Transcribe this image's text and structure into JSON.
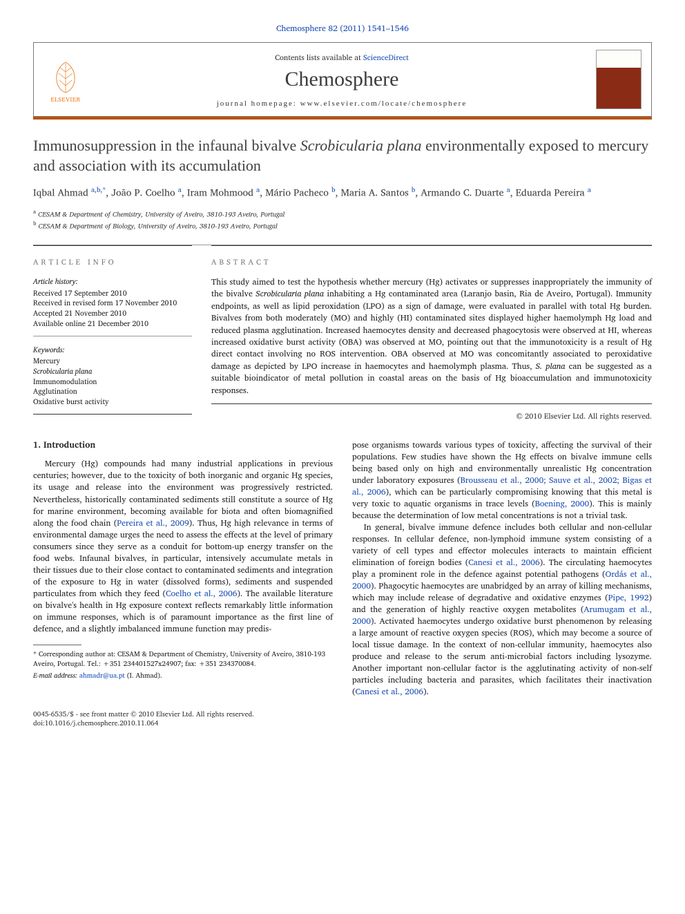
{
  "journal_ref": "Chemosphere 82 (2011) 1541–1546",
  "masthead": {
    "publisher_name": "ELSEVIER",
    "contents_prefix": "Contents lists available at ",
    "contents_link": "ScienceDirect",
    "journal_title": "Chemosphere",
    "homepage_label": "journal homepage: www.elsevier.com/locate/chemosphere",
    "accent_color": "#be5200",
    "border_color": "#777777"
  },
  "title_plain": "Immunosuppression in the infaunal bivalve Scrobicularia plana environmentally exposed to mercury and association with its accumulation",
  "title_parts": {
    "before": "Immunosuppression in the infaunal bivalve ",
    "species": "Scrobicularia plana",
    "after": " environmentally exposed to mercury and association with its accumulation"
  },
  "authors_html": "Iqbal Ahmad <sup>a,b,*</sup>, João P. Coelho <sup>a</sup>, Iram Mohmood <sup>a</sup>, Mário Pacheco <sup>b</sup>, Maria A. Santos <sup>b</sup>, Armando C. Duarte <sup>a</sup>, Eduarda Pereira <sup>a</sup>",
  "affiliations": [
    {
      "sup": "a",
      "text": "CESAM & Department of Chemistry, University of Aveiro, 3810-193 Aveiro, Portugal"
    },
    {
      "sup": "b",
      "text": "CESAM & Department of Biology, University of Aveiro, 3810-193 Aveiro, Portugal"
    }
  ],
  "article_info": {
    "head": "article info",
    "history_label": "Article history:",
    "history": [
      "Received 17 September 2010",
      "Received in revised form 17 November 2010",
      "Accepted 21 November 2010",
      "Available online 21 December 2010"
    ],
    "keywords_label": "Keywords:",
    "keywords": [
      "Mercury",
      "Scrobicularia plana",
      "Immunomodulation",
      "Agglutination",
      "Oxidative burst activity"
    ]
  },
  "abstract": {
    "head": "abstract",
    "text": "This study aimed to test the hypothesis whether mercury (Hg) activates or suppresses inappropriately the immunity of the bivalve Scrobicularia plana inhabiting a Hg contaminated area (Laranjo basin, Ria de Aveiro, Portugal). Immunity endpoints, as well as lipid peroxidation (LPO) as a sign of damage, were evaluated in parallel with total Hg burden. Bivalves from both moderately (MO) and highly (HI) contaminated sites displayed higher haemolymph Hg load and reduced plasma agglutination. Increased haemocytes density and decreased phagocytosis were observed at HI, whereas increased oxidative burst activity (OBA) was observed at MO, pointing out that the immunotoxicity is a result of Hg direct contact involving no ROS intervention. OBA observed at MO was concomitantly associated to peroxidative damage as depicted by LPO increase in haemocytes and haemolymph plasma. Thus, S. plana can be suggested as a suitable bioindicator of metal pollution in coastal areas on the basis of Hg bioaccumulation and immunotoxicity responses.",
    "copyright": "© 2010 Elsevier Ltd. All rights reserved."
  },
  "intro_head": "1. Introduction",
  "col_left": {
    "p1_before": "Mercury (Hg) compounds had many industrial applications in previous centuries; however, due to the toxicity of both inorganic and organic Hg species, its usage and release into the environment was progressively restricted. Nevertheless, historically contaminated sediments still constitute a source of Hg for marine environment, becoming available for biota and often biomagnified along the food chain (",
    "p1_cite1": "Pereira et al., 2009",
    "p1_mid1": "). Thus, Hg high relevance in terms of environmental damage urges the need to assess the effects at the level of primary consumers since they serve as a conduit for bottom-up energy transfer on the food webs. Infaunal bivalves, in particular, intensively accumulate metals in their tissues due to their close contact to contaminated sediments and integration of the exposure to Hg in water (dissolved forms), sediments and suspended particulates from which they feed (",
    "p1_cite2": "Coelho et al., 2006",
    "p1_end": "). The available literature on bivalve's health in Hg exposure context reflects remarkably little information on immune responses, which is of paramount importance as the first line of defence, and a slightly imbalanced immune function may predis-"
  },
  "col_right": {
    "p1_before": "pose organisms towards various types of toxicity, affecting the survival of their populations. Few studies have shown the Hg effects on bivalve immune cells being based only on high and environmentally unrealistic Hg concentration under laboratory exposures (",
    "p1_cite1": "Brousseau et al., 2000; Sauve et al., 2002; Bigas et al., 2006",
    "p1_mid1": "), which can be particularly compromising knowing that this metal is very toxic to aquatic organisms in trace levels (",
    "p1_cite2": "Boening, 2000",
    "p1_end": "). This is mainly because the determination of low metal concentrations is not a trivial task.",
    "p2_before": "In general, bivalve immune defence includes both cellular and non-cellular responses. In cellular defence, non-lymphoid immune system consisting of a variety of cell types and effector molecules interacts to maintain efficient elimination of foreign bodies (",
    "p2_cite1": "Canesi et al., 2006",
    "p2_mid1": "). The circulating haemocytes play a prominent role in the defence against potential pathogens (",
    "p2_cite2": "Ordás et al., 2000",
    "p2_mid2": "). Phagocytic haemocytes are unabridged by an array of killing mechanisms, which may include release of degradative and oxidative enzymes (",
    "p2_cite3": "Pipe, 1992",
    "p2_mid3": ") and the generation of highly reactive oxygen metabolites (",
    "p2_cite4": "Arumugam et al., 2000",
    "p2_mid4": "). Activated haemocytes undergo oxidative burst phenomenon by releasing a large amount of reactive oxygen species (ROS), which may become a source of local tissue damage. In the context of non-cellular immunity, haemocytes also produce and release to the serum anti-microbial factors including lysozyme. Another important non-cellular factor is the agglutinating activity of non-self particles including bacteria and parasites, which facilitates their inactivation (",
    "p2_cite5": "Canesi et al., 2006",
    "p2_end": ")."
  },
  "footnotes": {
    "corr": "* Corresponding author at: CESAM & Department of Chemistry, University of Aveiro, 3810-193 Aveiro, Portugal. Tel.: +351 234401527x24907; fax: +351 234370084.",
    "email_label": "E-mail address: ",
    "email": "ahmadr@ua.pt",
    "email_suffix": " (I. Ahmad)."
  },
  "footer": {
    "line1": "0045-6535/$ - see front matter © 2010 Elsevier Ltd. All rights reserved.",
    "line2": "doi:10.1016/j.chemosphere.2010.11.064"
  },
  "colors": {
    "link": "#1a4db3",
    "accent": "#be5200",
    "text": "#222222",
    "heading_gray": "#7a7a7a"
  }
}
